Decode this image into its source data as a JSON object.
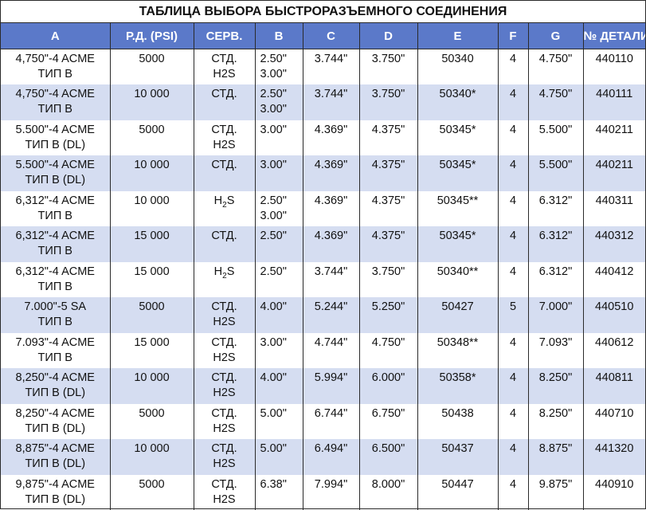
{
  "title": "ТАБЛИЦА ВЫБОРА БЫСТРОРАЗЪЕМНОГО СОЕДИНЕНИЯ",
  "columns": [
    "A",
    "Р.Д. (PSI)",
    "СЕРВ.",
    "B",
    "C",
    "D",
    "E",
    "F",
    "G",
    "№ ДЕТАЛИ"
  ],
  "rows": [
    {
      "a": [
        "4,750\"-4 ACME",
        "ТИП B"
      ],
      "pd": "5000",
      "serv": [
        "СТД.",
        "H2S"
      ],
      "b": [
        "2.50\"",
        "3.00\""
      ],
      "c": "3.744\"",
      "d": "3.750\"",
      "e": "50340",
      "f": "4",
      "g": "4.750\"",
      "part": "440110"
    },
    {
      "a": [
        "4,750\"-4 ACME",
        "ТИП B"
      ],
      "pd": "10 000",
      "serv": [
        "СТД."
      ],
      "b": [
        "2.50\"",
        "3.00\""
      ],
      "c": "3.744\"",
      "d": "3.750\"",
      "e": "50340*",
      "f": "4",
      "g": "4.750\"",
      "part": "440111"
    },
    {
      "a": [
        "5.500\"-4 ACME",
        "ТИП B (DL)"
      ],
      "pd": "5000",
      "serv": [
        "СТД.",
        "H2S"
      ],
      "b": [
        "3.00\""
      ],
      "c": "4.369\"",
      "d": "4.375\"",
      "e": "50345*",
      "f": "4",
      "g": "5.500\"",
      "part": "440211"
    },
    {
      "a": [
        "5.500\"-4 ACME",
        "ТИП B (DL)"
      ],
      "pd": "10 000",
      "serv": [
        "СТД."
      ],
      "b": [
        "3.00\""
      ],
      "c": "4.369\"",
      "d": "4.375\"",
      "e": "50345*",
      "f": "4",
      "g": "5.500\"",
      "part": "440211"
    },
    {
      "a": [
        "6,312\"-4 ACME",
        "ТИП B"
      ],
      "pd": "10 000",
      "serv": [
        "H2S"
      ],
      "servsub": true,
      "b": [
        "2.50\"",
        "3.00\""
      ],
      "c": "4.369\"",
      "d": "4.375\"",
      "e": "50345**",
      "f": "4",
      "g": "6.312\"",
      "part": "440311"
    },
    {
      "a": [
        "6,312\"-4 ACME",
        "ТИП B"
      ],
      "pd": "15 000",
      "serv": [
        "СТД."
      ],
      "b": [
        "2.50\""
      ],
      "c": "4.369\"",
      "d": "4.375\"",
      "e": "50345*",
      "f": "4",
      "g": "6.312\"",
      "part": "440312"
    },
    {
      "a": [
        "6,312\"-4 ACME",
        "ТИП B"
      ],
      "pd": "15 000",
      "serv": [
        "H2S"
      ],
      "servsub": true,
      "b": [
        "2.50\""
      ],
      "c": "3.744\"",
      "d": "3.750\"",
      "e": "50340**",
      "f": "4",
      "g": "6.312\"",
      "part": "440412"
    },
    {
      "a": [
        "7.000\"-5 SA",
        "ТИП B"
      ],
      "pd": "5000",
      "serv": [
        "СТД.",
        "H2S"
      ],
      "b": [
        "4.00\""
      ],
      "c": "5.244\"",
      "d": "5.250\"",
      "e": "50427",
      "f": "5",
      "g": "7.000\"",
      "part": "440510"
    },
    {
      "a": [
        "7.093\"-4 ACME",
        "ТИП B"
      ],
      "pd": "15 000",
      "serv": [
        "СТД.",
        "H2S"
      ],
      "b": [
        "3.00\""
      ],
      "c": "4.744\"",
      "d": "4.750\"",
      "e": "50348**",
      "f": "4",
      "g": "7.093\"",
      "part": "440612"
    },
    {
      "a": [
        "8,250\"-4 ACME",
        "ТИП B (DL)"
      ],
      "pd": "10 000",
      "serv": [
        "СТД.",
        "H2S"
      ],
      "b": [
        "4.00\""
      ],
      "c": "5.994\"",
      "d": "6.000\"",
      "e": "50358*",
      "f": "4",
      "g": "8.250\"",
      "part": "440811"
    },
    {
      "a": [
        "8,250\"-4 ACME",
        "ТИП B (DL)"
      ],
      "pd": "5000",
      "serv": [
        "СТД.",
        "H2S"
      ],
      "b": [
        "5.00\""
      ],
      "c": "6.744\"",
      "d": "6.750\"",
      "e": "50438",
      "f": "4",
      "g": "8.250\"",
      "part": "440710"
    },
    {
      "a": [
        "8,875\"-4 ACME",
        "ТИП B (DL)"
      ],
      "pd": "10 000",
      "serv": [
        "СТД.",
        "H2S"
      ],
      "b": [
        "5.00\""
      ],
      "c": "6.494\"",
      "d": "6.500\"",
      "e": "50437",
      "f": "4",
      "g": "8.875\"",
      "part": "441320"
    },
    {
      "a": [
        "9,875\"-4 ACME",
        "ТИП B (DL)"
      ],
      "pd": "5000",
      "serv": [
        "СТД.",
        "H2S"
      ],
      "b": [
        "6.38\""
      ],
      "c": "7.994\"",
      "d": "8.000\"",
      "e": "50447",
      "f": "4",
      "g": "9.875\"",
      "part": "440910"
    }
  ]
}
